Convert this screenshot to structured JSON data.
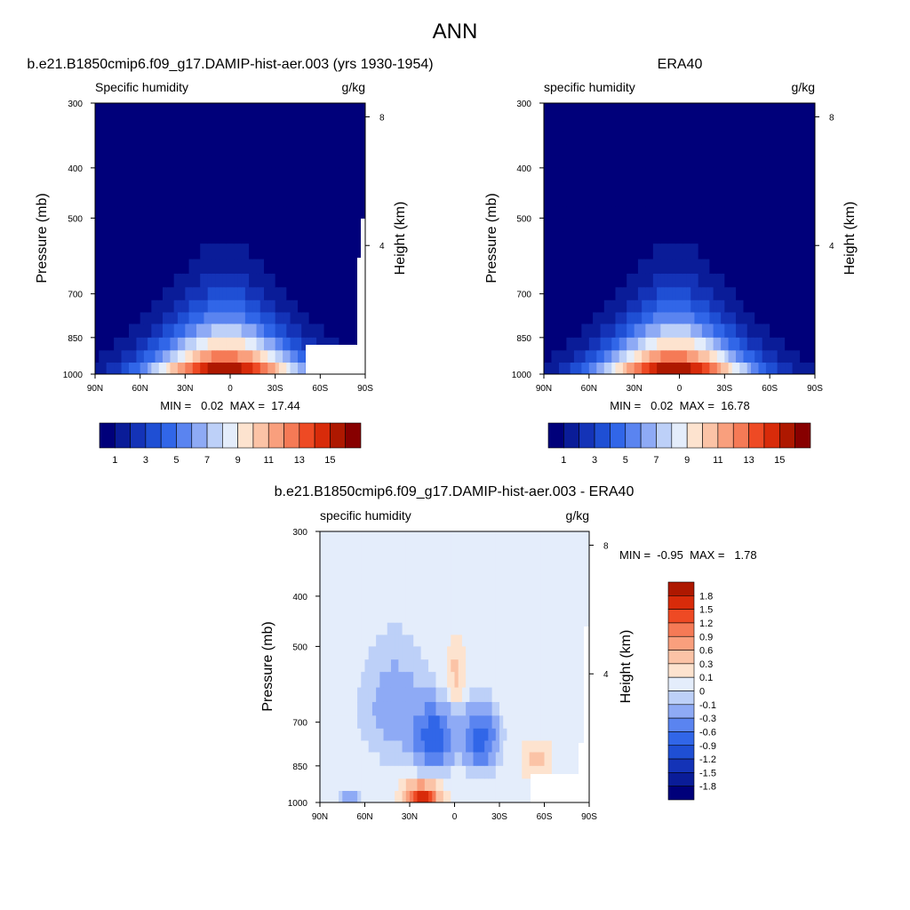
{
  "figure": {
    "title": "ANN"
  },
  "colors": {
    "seq_palette": [
      "#00007a",
      "#0a1c98",
      "#1433b7",
      "#1f4fd4",
      "#3166e8",
      "#5a84f0",
      "#8eaaf5",
      "#bdd0f8",
      "#e4edfb",
      "#fde3cf",
      "#fbc3a6",
      "#f99f7d",
      "#f57a56",
      "#ee4a24",
      "#d82b0a",
      "#ae1800",
      "#870000"
    ],
    "diff_palette": [
      "#00007a",
      "#0a1c98",
      "#1433b7",
      "#1f4fd4",
      "#3166e8",
      "#5a84f0",
      "#8eaaf5",
      "#bdd0f8",
      "#e4edfb",
      "#fde3cf",
      "#fbc3a6",
      "#f99f7d",
      "#f57a56",
      "#ee4a24",
      "#d82b0a",
      "#ae1800",
      "#870000"
    ],
    "missing": "#ffffff",
    "frame": "#000000"
  },
  "chart_data": [
    {
      "type": "heatmap",
      "panel_title": "b.e21.B1850cmip6.f09_g17.DAMIP-hist-aer.003 (yrs 1930-1954)",
      "subtitle_left": "Specific humidity",
      "subtitle_right": "g/kg",
      "ylabel": "Pressure (mb)",
      "ylabel_right": "Height (km)",
      "xticks": [
        "90N",
        "60N",
        "30N",
        "0",
        "30S",
        "60S",
        "90S"
      ],
      "yticks": [
        "300",
        "400",
        "500",
        "700",
        "850",
        "1000"
      ],
      "yticks_right": [
        "8",
        "4"
      ],
      "stats_text": "MIN =   0.02  MAX =  17.44",
      "min": 0.02,
      "max": 17.44,
      "colorbar_labels": [
        "1",
        "3",
        "5",
        "7",
        "9",
        "11",
        "13",
        "15"
      ],
      "colorbar_levels": [
        1,
        2,
        3,
        4,
        5,
        6,
        7,
        8,
        9,
        10,
        11,
        12,
        13,
        14,
        15,
        16
      ],
      "colorbar_orientation": "horizontal",
      "has_missing_region": true
    },
    {
      "type": "heatmap",
      "panel_title": "ERA40",
      "subtitle_left": "specific humidity",
      "subtitle_right": "g/kg",
      "ylabel": "Pressure (mb)",
      "ylabel_right": "Height (km)",
      "xticks": [
        "90N",
        "60N",
        "30N",
        "0",
        "30S",
        "60S",
        "90S"
      ],
      "yticks": [
        "300",
        "400",
        "500",
        "700",
        "850",
        "1000"
      ],
      "yticks_right": [
        "8",
        "4"
      ],
      "stats_text": "MIN =   0.02  MAX =  16.78",
      "min": 0.02,
      "max": 16.78,
      "colorbar_labels": [
        "1",
        "3",
        "5",
        "7",
        "9",
        "11",
        "13",
        "15"
      ],
      "colorbar_levels": [
        1,
        2,
        3,
        4,
        5,
        6,
        7,
        8,
        9,
        10,
        11,
        12,
        13,
        14,
        15,
        16
      ],
      "colorbar_orientation": "horizontal",
      "has_missing_region": false
    },
    {
      "type": "heatmap",
      "panel_title": "b.e21.B1850cmip6.f09_g17.DAMIP-hist-aer.003 - ERA40",
      "subtitle_left": "specific humidity",
      "subtitle_right": "g/kg",
      "ylabel": "Pressure (mb)",
      "ylabel_right": "Height (km)",
      "xticks": [
        "90N",
        "60N",
        "30N",
        "0",
        "30S",
        "60S",
        "90S"
      ],
      "yticks": [
        "300",
        "400",
        "500",
        "700",
        "850",
        "1000"
      ],
      "yticks_right": [
        "8",
        "4"
      ],
      "stats_text": "MIN =  -0.95  MAX =   1.78",
      "min": -0.95,
      "max": 1.78,
      "colorbar_labels": [
        "1.8",
        "1.5",
        "1.2",
        "0.9",
        "0.6",
        "0.3",
        "0.1",
        "0",
        "-0.1",
        "-0.3",
        "-0.6",
        "-0.9",
        "-1.2",
        "-1.5",
        "-1.8"
      ],
      "colorbar_levels": [
        -1.8,
        -1.5,
        -1.2,
        -0.9,
        -0.6,
        -0.3,
        -0.1,
        0,
        0.1,
        0.3,
        0.6,
        0.9,
        1.2,
        1.5,
        1.8
      ],
      "colorbar_orientation": "vertical",
      "has_missing_region": true
    }
  ]
}
